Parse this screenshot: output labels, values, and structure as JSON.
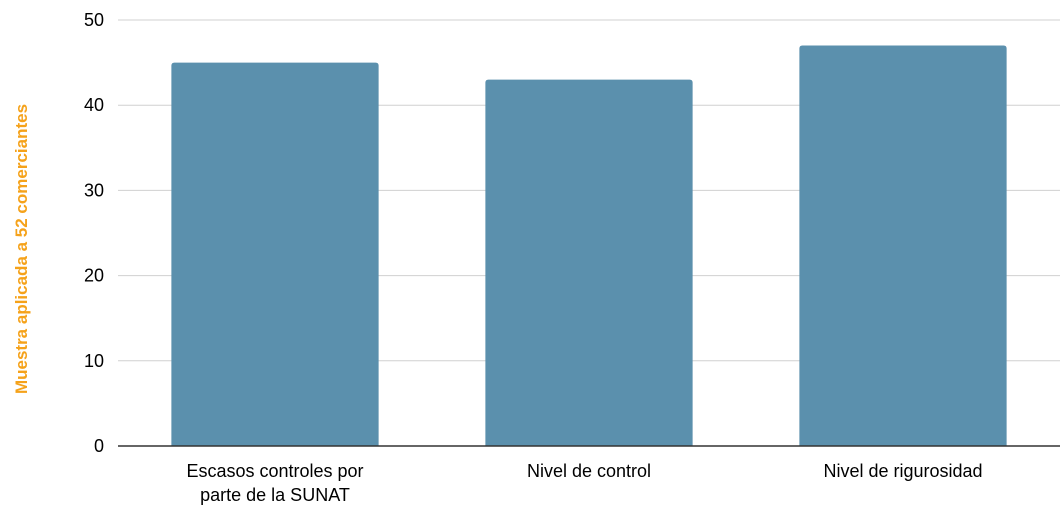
{
  "chart_data": {
    "type": "bar",
    "categories": [
      [
        "Escasos controles por",
        "parte de la SUNAT"
      ],
      [
        "Nivel de control"
      ],
      [
        "Nivel de rigurosidad"
      ]
    ],
    "values": [
      45,
      43,
      47
    ],
    "ylabel": "Muestra aplicada a 52 comerciantes",
    "ylim": [
      0,
      50
    ],
    "yticks": [
      "0",
      "10",
      "20",
      "30",
      "40",
      "50"
    ],
    "grid": true,
    "colors": {
      "bar": "#5b90ad",
      "ylabel": "#f5a21a",
      "grid": "#d0d0d0",
      "axis": "#333333"
    }
  }
}
